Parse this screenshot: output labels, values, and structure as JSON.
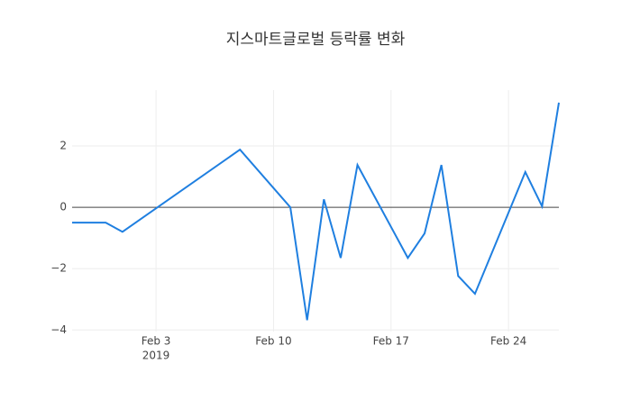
{
  "chart_data": {
    "type": "line",
    "title": "지스마트글로벌 등락률 변화",
    "x": [
      "2019-01-29",
      "2019-01-30",
      "2019-01-31",
      "2019-02-01",
      "2019-02-08",
      "2019-02-11",
      "2019-02-12",
      "2019-02-13",
      "2019-02-14",
      "2019-02-15",
      "2019-02-18",
      "2019-02-19",
      "2019-02-20",
      "2019-02-21",
      "2019-02-22",
      "2019-02-25",
      "2019-02-26",
      "2019-02-27"
    ],
    "series": [
      {
        "color": "#1f7fe0",
        "values": [
          -0.5,
          -0.5,
          -0.5,
          -0.8,
          1.88,
          0.0,
          -3.68,
          0.26,
          -1.65,
          1.38,
          -1.65,
          -0.85,
          1.38,
          -2.24,
          -2.82,
          1.15,
          0.03,
          3.41
        ]
      }
    ],
    "xlim": [
      "2019-01-29",
      "2019-02-27"
    ],
    "xticks": [
      {
        "value": "2019-02-03",
        "label": "Feb 3"
      },
      {
        "value": "2019-02-10",
        "label": "Feb 10"
      },
      {
        "value": "2019-02-17",
        "label": "Feb 17"
      },
      {
        "value": "2019-02-24",
        "label": "Feb 24"
      }
    ],
    "xtick_year": "2019",
    "ylim": [
      -4.05,
      3.82
    ],
    "yticks": [
      {
        "value": -4,
        "label": "−4"
      },
      {
        "value": -2,
        "label": "−2"
      },
      0,
      2
    ],
    "grid": true
  }
}
